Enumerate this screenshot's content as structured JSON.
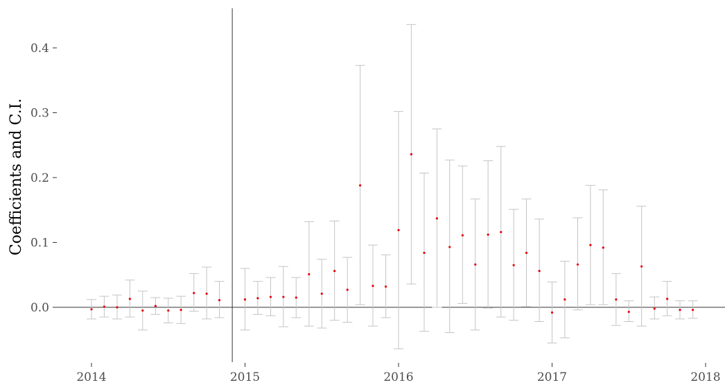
{
  "chart_data": {
    "type": "scatter",
    "title": "",
    "xlabel": "",
    "ylabel": "Coefficients and C.I.",
    "x_ticks": [
      {
        "label": "2014",
        "value": 2014
      },
      {
        "label": "2015",
        "value": 2015
      },
      {
        "label": "2016",
        "value": 2016
      },
      {
        "label": "2017",
        "value": 2017
      },
      {
        "label": "2018",
        "value": 2018
      }
    ],
    "y_ticks": [
      {
        "label": "0.0",
        "value": 0.0
      },
      {
        "label": "0.1",
        "value": 0.1
      },
      {
        "label": "0.2",
        "value": 0.2
      },
      {
        "label": "0.3",
        "value": 0.3
      },
      {
        "label": "0.4",
        "value": 0.4
      }
    ],
    "xlim": [
      2013.63,
      2018.2
    ],
    "ylim": [
      -0.085,
      0.463
    ],
    "grid": false,
    "reference_lines": {
      "horizontal_y": 0.0,
      "vertical_x": 2014.917
    },
    "colors": {
      "point": "#e8000b",
      "interval": "#c4c4c4",
      "reference": "#333333"
    },
    "series": [
      {
        "x": [
          2014.0,
          2014.083,
          2014.167,
          2014.25,
          2014.333,
          2014.417,
          2014.5,
          2014.583,
          2014.667,
          2014.75,
          2014.833,
          2015.0,
          2015.083,
          2015.167,
          2015.25,
          2015.333,
          2015.417,
          2015.5,
          2015.583,
          2015.667,
          2015.75,
          2015.833,
          2015.917,
          2016.0,
          2016.083,
          2016.167,
          2016.25,
          2016.333,
          2016.417,
          2016.5,
          2016.583,
          2016.667,
          2016.75,
          2016.833,
          2016.917,
          2017.0,
          2017.083,
          2017.167,
          2017.25,
          2017.333,
          2017.417,
          2017.5,
          2017.583,
          2017.667,
          2017.75,
          2017.833,
          2017.917
        ],
        "y": [
          -0.003,
          0.001,
          0.0,
          0.013,
          -0.005,
          0.002,
          -0.005,
          -0.004,
          0.022,
          0.021,
          0.011,
          0.012,
          0.014,
          0.016,
          0.016,
          0.015,
          0.051,
          0.021,
          0.056,
          0.027,
          0.188,
          0.033,
          0.032,
          0.119,
          0.236,
          0.084,
          0.137,
          0.093,
          0.111,
          0.066,
          0.112,
          0.116,
          0.065,
          0.084,
          0.056,
          -0.008,
          0.012,
          0.066,
          0.096,
          0.092,
          0.012,
          -0.007,
          0.063,
          -0.002,
          0.013,
          -0.004,
          -0.004
        ],
        "lower": [
          -0.018,
          -0.015,
          -0.018,
          -0.015,
          -0.035,
          -0.011,
          -0.024,
          -0.025,
          -0.006,
          -0.018,
          -0.016,
          -0.035,
          -0.011,
          -0.013,
          -0.03,
          -0.016,
          -0.029,
          -0.032,
          -0.02,
          -0.023,
          0.004,
          -0.029,
          -0.016,
          -0.064,
          0.036,
          -0.037,
          0.0,
          -0.039,
          0.006,
          -0.035,
          -0.001,
          -0.015,
          -0.02,
          0.001,
          -0.022,
          -0.055,
          -0.047,
          -0.004,
          0.004,
          0.004,
          -0.028,
          -0.022,
          -0.029,
          -0.018,
          -0.013,
          -0.018,
          -0.017
        ],
        "upper": [
          0.012,
          0.017,
          0.019,
          0.042,
          0.025,
          0.015,
          0.014,
          0.017,
          0.052,
          0.062,
          0.04,
          0.06,
          0.04,
          0.046,
          0.063,
          0.046,
          0.132,
          0.074,
          0.133,
          0.077,
          0.373,
          0.096,
          0.081,
          0.302,
          0.436,
          0.207,
          0.275,
          0.227,
          0.218,
          0.167,
          0.226,
          0.248,
          0.151,
          0.167,
          0.136,
          0.039,
          0.071,
          0.138,
          0.188,
          0.181,
          0.052,
          0.01,
          0.156,
          0.016,
          0.04,
          0.01,
          0.01
        ]
      }
    ]
  }
}
